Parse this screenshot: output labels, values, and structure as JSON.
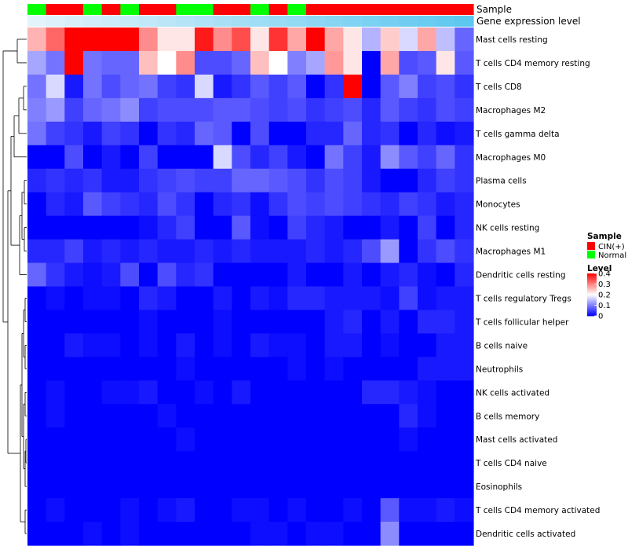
{
  "chart_data": {
    "type": "heatmap",
    "title": "",
    "annotation_labels": {
      "sample": "Sample",
      "gene_expression": "Gene expression level"
    },
    "sample_groups": [
      "Normal",
      "CIN(+)",
      "CIN(+)",
      "Normal",
      "CIN(+)",
      "Normal",
      "CIN(+)",
      "CIN(+)",
      "Normal",
      "Normal",
      "CIN(+)",
      "CIN(+)",
      "Normal",
      "CIN(+)",
      "Normal",
      "CIN(+)",
      "CIN(+)",
      "CIN(+)",
      "CIN(+)",
      "CIN(+)",
      "CIN(+)",
      "CIN(+)",
      "CIN(+)",
      "CIN(+)"
    ],
    "gene_expression_levels": [
      0.02,
      0.06,
      0.1,
      0.14,
      0.18,
      0.22,
      0.26,
      0.3,
      0.34,
      0.38,
      0.42,
      0.46,
      0.5,
      0.54,
      0.58,
      0.62,
      0.66,
      0.7,
      0.74,
      0.78,
      0.82,
      0.86,
      0.9,
      0.96
    ],
    "rows": [
      {
        "name": "Mast cells resting",
        "values": [
          0.26,
          0.32,
          0.4,
          0.4,
          0.4,
          0.4,
          0.29,
          0.22,
          0.22,
          0.38,
          0.29,
          0.34,
          0.22,
          0.36,
          0.27,
          0.4,
          0.27,
          0.22,
          0.14,
          0.24,
          0.17,
          0.27,
          0.15,
          0.08
        ]
      },
      {
        "name": "T cells CD4 memory resting",
        "values": [
          0.13,
          0.09,
          0.4,
          0.09,
          0.08,
          0.08,
          0.25,
          0.2,
          0.29,
          0.06,
          0.06,
          0.08,
          0.25,
          0.2,
          0.1,
          0.13,
          0.28,
          0.22,
          0.0,
          0.27,
          0.06,
          0.07,
          0.22,
          0.07
        ]
      },
      {
        "name": "T cells CD8",
        "values": [
          0.09,
          0.17,
          0.02,
          0.09,
          0.06,
          0.08,
          0.09,
          0.05,
          0.04,
          0.17,
          0.02,
          0.04,
          0.07,
          0.05,
          0.07,
          0.0,
          0.04,
          0.4,
          0.0,
          0.07,
          0.1,
          0.05,
          0.06,
          0.04
        ]
      },
      {
        "name": "Macrophages M2",
        "values": [
          0.1,
          0.12,
          0.05,
          0.08,
          0.09,
          0.11,
          0.05,
          0.06,
          0.06,
          0.06,
          0.07,
          0.07,
          0.06,
          0.05,
          0.06,
          0.04,
          0.05,
          0.06,
          0.03,
          0.07,
          0.05,
          0.04,
          0.06,
          0.05
        ]
      },
      {
        "name": "T cells gamma delta",
        "values": [
          0.09,
          0.05,
          0.04,
          0.02,
          0.05,
          0.04,
          0.0,
          0.04,
          0.03,
          0.08,
          0.07,
          0.0,
          0.06,
          0.0,
          0.0,
          0.03,
          0.03,
          0.08,
          0.03,
          0.04,
          0.0,
          0.03,
          0.01,
          0.02
        ]
      },
      {
        "name": "Macrophages M0",
        "values": [
          0.0,
          0.0,
          0.06,
          0.0,
          0.02,
          0.0,
          0.05,
          0.0,
          0.0,
          0.0,
          0.17,
          0.06,
          0.03,
          0.05,
          0.02,
          0.0,
          0.09,
          0.05,
          0.02,
          0.11,
          0.07,
          0.05,
          0.08,
          0.04
        ]
      },
      {
        "name": "Plasma cells",
        "values": [
          0.03,
          0.04,
          0.03,
          0.04,
          0.02,
          0.02,
          0.04,
          0.05,
          0.06,
          0.05,
          0.05,
          0.08,
          0.08,
          0.07,
          0.06,
          0.04,
          0.06,
          0.05,
          0.02,
          0.0,
          0.0,
          0.03,
          0.05,
          0.04
        ]
      },
      {
        "name": "Monocytes",
        "values": [
          0.0,
          0.03,
          0.02,
          0.07,
          0.05,
          0.04,
          0.03,
          0.06,
          0.04,
          0.0,
          0.03,
          0.04,
          0.01,
          0.04,
          0.06,
          0.05,
          0.06,
          0.05,
          0.04,
          0.03,
          0.05,
          0.04,
          0.02,
          0.03
        ]
      },
      {
        "name": "NK cells resting",
        "values": [
          0.0,
          0.0,
          0.0,
          0.0,
          0.0,
          0.0,
          0.01,
          0.03,
          0.05,
          0.0,
          0.0,
          0.07,
          0.01,
          0.0,
          0.05,
          0.03,
          0.02,
          0.0,
          0.0,
          0.02,
          0.0,
          0.05,
          0.0,
          0.03
        ]
      },
      {
        "name": "Macrophages M1",
        "values": [
          0.03,
          0.03,
          0.05,
          0.02,
          0.03,
          0.02,
          0.03,
          0.02,
          0.02,
          0.03,
          0.02,
          0.03,
          0.02,
          0.02,
          0.02,
          0.03,
          0.02,
          0.03,
          0.06,
          0.12,
          0.0,
          0.04,
          0.06,
          0.04
        ]
      },
      {
        "name": "Dendritic cells resting",
        "values": [
          0.08,
          0.04,
          0.02,
          0.01,
          0.02,
          0.06,
          0.0,
          0.06,
          0.03,
          0.04,
          0.0,
          0.0,
          0.0,
          0.0,
          0.02,
          0.0,
          0.0,
          0.02,
          0.0,
          0.02,
          0.03,
          0.01,
          0.0,
          0.03
        ]
      },
      {
        "name": "T cells regulatory  Tregs",
        "values": [
          0.0,
          0.01,
          0.0,
          0.01,
          0.01,
          0.0,
          0.03,
          0.02,
          0.0,
          0.0,
          0.02,
          0.0,
          0.02,
          0.01,
          0.03,
          0.03,
          0.02,
          0.02,
          0.02,
          0.01,
          0.05,
          0.01,
          0.02,
          0.02
        ]
      },
      {
        "name": "T cells follicular helper",
        "values": [
          0.0,
          0.0,
          0.0,
          0.0,
          0.0,
          0.0,
          0.01,
          0.0,
          0.0,
          0.0,
          0.01,
          0.0,
          0.0,
          0.0,
          0.0,
          0.0,
          0.02,
          0.03,
          0.0,
          0.02,
          0.0,
          0.03,
          0.03,
          0.02
        ]
      },
      {
        "name": "B cells naive",
        "values": [
          0.0,
          0.0,
          0.02,
          0.01,
          0.01,
          0.0,
          0.01,
          0.0,
          0.02,
          0.0,
          0.01,
          0.0,
          0.02,
          0.01,
          0.01,
          0.0,
          0.02,
          0.02,
          0.0,
          0.01,
          0.0,
          0.0,
          0.02,
          0.02
        ]
      },
      {
        "name": "Neutrophils",
        "values": [
          0.0,
          0.0,
          0.0,
          0.0,
          0.0,
          0.0,
          0.0,
          0.0,
          0.01,
          0.0,
          0.0,
          0.0,
          0.0,
          0.0,
          0.01,
          0.0,
          0.01,
          0.0,
          0.0,
          0.0,
          0.0,
          0.02,
          0.02,
          0.02
        ]
      },
      {
        "name": "NK cells activated",
        "values": [
          0.0,
          0.01,
          0.0,
          0.0,
          0.01,
          0.01,
          0.02,
          0.0,
          0.0,
          0.01,
          0.0,
          0.02,
          0.0,
          0.0,
          0.0,
          0.0,
          0.0,
          0.0,
          0.03,
          0.03,
          0.02,
          0.01,
          0.0,
          0.0
        ]
      },
      {
        "name": "B cells memory",
        "values": [
          0.0,
          0.01,
          0.0,
          0.0,
          0.0,
          0.0,
          0.0,
          0.01,
          0.0,
          0.0,
          0.0,
          0.0,
          0.0,
          0.0,
          0.0,
          0.0,
          0.0,
          0.0,
          0.0,
          0.0,
          0.03,
          0.01,
          0.0,
          0.0
        ]
      },
      {
        "name": "Mast cells activated",
        "values": [
          0.0,
          0.0,
          0.0,
          0.0,
          0.0,
          0.0,
          0.0,
          0.0,
          0.01,
          0.0,
          0.0,
          0.0,
          0.0,
          0.0,
          0.0,
          0.0,
          0.0,
          0.0,
          0.0,
          0.0,
          0.01,
          0.0,
          0.0,
          0.0
        ]
      },
      {
        "name": "T cells CD4 naive",
        "values": [
          0.0,
          0.0,
          0.0,
          0.0,
          0.0,
          0.0,
          0.0,
          0.0,
          0.0,
          0.0,
          0.0,
          0.0,
          0.0,
          0.0,
          0.0,
          0.0,
          0.0,
          0.0,
          0.0,
          0.0,
          0.0,
          0.0,
          0.0,
          0.0
        ]
      },
      {
        "name": "Eosinophils",
        "values": [
          0.0,
          0.0,
          0.0,
          0.0,
          0.0,
          0.0,
          0.0,
          0.0,
          0.0,
          0.0,
          0.0,
          0.0,
          0.0,
          0.0,
          0.0,
          0.0,
          0.0,
          0.0,
          0.0,
          0.0,
          0.0,
          0.0,
          0.0,
          0.0
        ]
      },
      {
        "name": "T cells CD4 memory activated",
        "values": [
          0.0,
          0.01,
          0.0,
          0.0,
          0.0,
          0.01,
          0.0,
          0.01,
          0.02,
          0.0,
          0.0,
          0.01,
          0.01,
          0.0,
          0.01,
          0.0,
          0.0,
          0.01,
          0.0,
          0.07,
          0.01,
          0.01,
          0.02,
          0.01
        ]
      },
      {
        "name": "Dendritic cells activated",
        "values": [
          0.0,
          0.0,
          0.0,
          0.01,
          0.0,
          0.01,
          0.0,
          0.0,
          0.0,
          0.0,
          0.0,
          0.0,
          0.01,
          0.01,
          0.0,
          0.01,
          0.01,
          0.0,
          0.0,
          0.11,
          0.0,
          0.0,
          0.0,
          0.0
        ]
      }
    ],
    "color_scale": {
      "min": 0,
      "mid": 0.2,
      "max": 0.4,
      "low_color": "#0000ff",
      "mid_color": "#ffffff",
      "high_color": "#ff0000"
    },
    "legend": {
      "sample_title": "Sample",
      "sample_entries": [
        {
          "label": "CIN(+)",
          "color": "#ff0000"
        },
        {
          "label": "Normal",
          "color": "#00ff00"
        }
      ],
      "level_title": "Level",
      "level_ticks": [
        {
          "value": 0.4,
          "label": "0.4"
        },
        {
          "value": 0.3,
          "label": "0.3"
        },
        {
          "value": 0.2,
          "label": "0.2"
        },
        {
          "value": 0.1,
          "label": "0.1"
        },
        {
          "value": 0.0,
          "label": "0"
        }
      ],
      "placement": "right"
    },
    "gene_expression_colors": {
      "low": "#e6f4fb",
      "high": "#56c5ef"
    },
    "dendrogram": "rows"
  }
}
